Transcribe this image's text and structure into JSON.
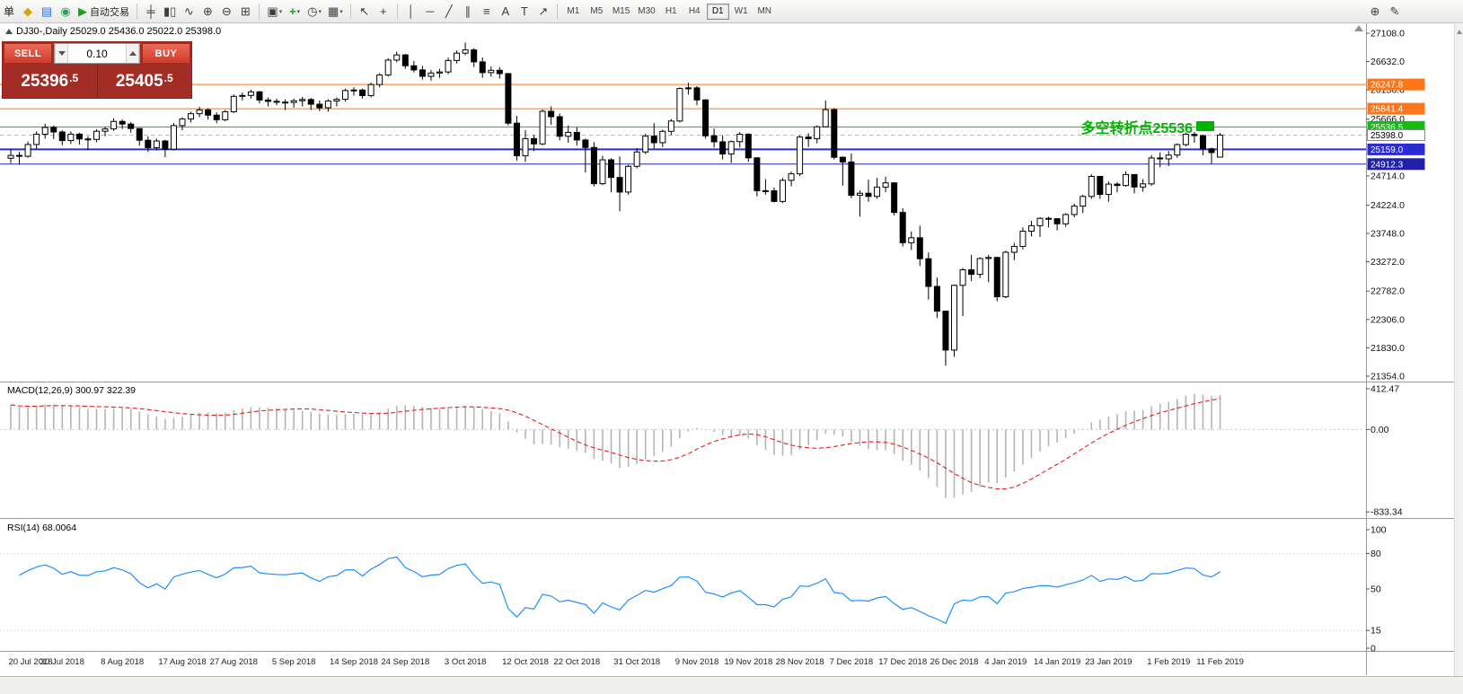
{
  "toolbar": {
    "menu_fragment": "单",
    "dropdown_caret": "▾",
    "groups": [
      {
        "items": [
          {
            "name": "new-order",
            "glyph": "◆",
            "color": "#dca400"
          },
          {
            "name": "market-watch",
            "glyph": "▤",
            "color": "#3a6fd8"
          },
          {
            "name": "navigator",
            "glyph": "◉",
            "color": "#2e9e5b"
          },
          {
            "name": "auto-trading",
            "glyph": "▶",
            "color": "#16a316",
            "label": "自动交易"
          }
        ]
      },
      {
        "items": [
          {
            "name": "bars-chart",
            "glyph": "╪"
          },
          {
            "name": "candlestick-chart",
            "glyph": "▮▯"
          },
          {
            "name": "line-chart",
            "glyph": "∿"
          },
          {
            "name": "zoom-in",
            "glyph": "⊕"
          },
          {
            "name": "zoom-out",
            "glyph": "⊖"
          },
          {
            "name": "tile-windows",
            "glyph": "⊞"
          }
        ]
      },
      {
        "items": [
          {
            "name": "new-chart",
            "glyph": "▣",
            "dropdown": true
          },
          {
            "name": "add-indicator",
            "glyph": "+",
            "color": "#16a316",
            "bold": true,
            "dropdown": true
          },
          {
            "name": "periods",
            "glyph": "◷",
            "dropdown": true
          },
          {
            "name": "templates",
            "glyph": "▦",
            "dropdown": true
          }
        ]
      },
      {
        "items": [
          {
            "name": "cursor",
            "glyph": "↖"
          },
          {
            "name": "crosshair",
            "glyph": "+"
          }
        ]
      },
      {
        "items": [
          {
            "name": "vertical-line",
            "glyph": "│"
          },
          {
            "name": "horizontal-line",
            "glyph": "─"
          },
          {
            "name": "trendline",
            "glyph": "╱"
          },
          {
            "name": "equidistant-channel",
            "glyph": "∥"
          },
          {
            "name": "fibonacci",
            "glyph": "≡"
          },
          {
            "name": "text",
            "glyph": "A"
          },
          {
            "name": "text-label",
            "glyph": "T"
          },
          {
            "name": "arrows",
            "glyph": "↗"
          }
        ]
      }
    ],
    "timeframes": [
      "M1",
      "M5",
      "M15",
      "M30",
      "H1",
      "H4",
      "D1",
      "W1",
      "MN"
    ],
    "active_timeframe": "D1",
    "right_icons": [
      {
        "name": "magnifier",
        "glyph": "⊕"
      },
      {
        "name": "edit-compose",
        "glyph": "✎"
      }
    ]
  },
  "chart": {
    "title": "DJ30-,Daily 25029.0 25436.0 25022.0 25398.0",
    "annotation_text": "多空转折点25536",
    "annotation_color": "#00b400"
  },
  "trade_panel": {
    "sell_label": "SELL",
    "buy_label": "BUY",
    "volume": "0.10",
    "sell_price_main": "25396",
    "sell_price_pip": ".5",
    "buy_price_main": "25405",
    "buy_price_pip": ".5"
  },
  "macd_panel": {
    "label": "MACD(12,26,9) 300.97 322.39",
    "ticks": [
      {
        "v": 412.47,
        "label": "412.47"
      },
      {
        "v": 0,
        "label": "0.00"
      },
      {
        "v": -833.34,
        "label": "-833.34"
      }
    ]
  },
  "rsi_panel": {
    "label": "RSI(14) 68.0064",
    "ticks": [
      {
        "v": 100,
        "label": "100"
      },
      {
        "v": 80,
        "label": "80"
      },
      {
        "v": 50,
        "label": "50"
      },
      {
        "v": 15,
        "label": "15"
      },
      {
        "v": 0,
        "label": "0"
      }
    ],
    "levels": [
      80,
      15
    ]
  },
  "chart_data": {
    "type": "candlestick",
    "symbol": "DJ30-",
    "period": "Daily",
    "ohlc_last": {
      "open": 25029.0,
      "high": 25436.0,
      "low": 25022.0,
      "close": 25398.0
    },
    "y_axis": {
      "top": 27108.0,
      "bottom": 21354.0,
      "ticks": [
        "27108.0",
        "26632.0",
        "26156.0",
        "25666.0",
        "24714.0",
        "24224.0",
        "23748.0",
        "23272.0",
        "22782.0",
        "22306.0",
        "21830.0",
        "21354.0"
      ]
    },
    "levels": [
      {
        "price": 26247.8,
        "label": "26247.8",
        "color": "#ff7519",
        "style": "solid",
        "width": 1
      },
      {
        "price": 25841.4,
        "label": "25841.4",
        "color": "#ff7519",
        "style": "solid",
        "width": 1
      },
      {
        "price": 25536.5,
        "label": "25536.5",
        "color": "#13bd13",
        "style": "solid",
        "width": 1
      },
      {
        "price": 25398.0,
        "label": "25398.0",
        "color": "#b8b8b8",
        "style": "dash",
        "width": 1,
        "axis_style": "plain"
      },
      {
        "price": 25159.0,
        "label": "25159.0",
        "color": "#2b2bd4",
        "style": "solid",
        "width": 2
      },
      {
        "price": 24912.3,
        "label": "24912.3",
        "color": "#2020a8",
        "style": "solid",
        "width": 1
      }
    ],
    "x_labels": [
      {
        "text": "20 Jul 2018",
        "i": 0
      },
      {
        "text": "30 Jul 2018",
        "i": 6
      },
      {
        "text": "8 Aug 2018",
        "i": 13
      },
      {
        "text": "17 Aug 2018",
        "i": 20
      },
      {
        "text": "27 Aug 2018",
        "i": 26
      },
      {
        "text": "5 Sep 2018",
        "i": 33
      },
      {
        "text": "14 Sep 2018",
        "i": 40
      },
      {
        "text": "24 Sep 2018",
        "i": 46
      },
      {
        "text": "3 Oct 2018",
        "i": 53
      },
      {
        "text": "12 Oct 2018",
        "i": 60
      },
      {
        "text": "22 Oct 2018",
        "i": 66
      },
      {
        "text": "31 Oct 2018",
        "i": 73
      },
      {
        "text": "9 Nov 2018",
        "i": 80
      },
      {
        "text": "19 Nov 2018",
        "i": 86
      },
      {
        "text": "28 Nov 2018",
        "i": 92
      },
      {
        "text": "7 Dec 2018",
        "i": 98
      },
      {
        "text": "17 Dec 2018",
        "i": 104
      },
      {
        "text": "26 Dec 2018",
        "i": 110
      },
      {
        "text": "4 Jan 2019",
        "i": 116
      },
      {
        "text": "14 Jan 2019",
        "i": 122
      },
      {
        "text": "23 Jan 2019",
        "i": 128
      },
      {
        "text": "1 Feb 2019",
        "i": 135
      },
      {
        "text": "11 Feb 2019",
        "i": 141
      }
    ],
    "candles": [
      [
        25010,
        25160,
        24930,
        25058
      ],
      [
        25058,
        25120,
        24900,
        25044
      ],
      [
        25044,
        25290,
        25020,
        25241
      ],
      [
        25241,
        25460,
        25170,
        25414
      ],
      [
        25414,
        25590,
        25340,
        25527
      ],
      [
        25527,
        25560,
        25330,
        25451
      ],
      [
        25451,
        25480,
        25230,
        25307
      ],
      [
        25307,
        25460,
        25250,
        25415
      ],
      [
        25415,
        25440,
        25240,
        25334
      ],
      [
        25334,
        25380,
        25150,
        25326
      ],
      [
        25326,
        25500,
        25280,
        25463
      ],
      [
        25463,
        25540,
        25380,
        25502
      ],
      [
        25502,
        25680,
        25470,
        25628
      ],
      [
        25628,
        25660,
        25500,
        25584
      ],
      [
        25584,
        25620,
        25440,
        25509
      ],
      [
        25509,
        25520,
        25220,
        25313
      ],
      [
        25313,
        25380,
        25120,
        25187
      ],
      [
        25187,
        25340,
        25140,
        25300
      ],
      [
        25300,
        25320,
        25029,
        25162
      ],
      [
        25162,
        25600,
        25140,
        25558
      ],
      [
        25558,
        25700,
        25480,
        25669
      ],
      [
        25669,
        25790,
        25610,
        25758
      ],
      [
        25758,
        25870,
        25700,
        25822
      ],
      [
        25822,
        25850,
        25660,
        25734
      ],
      [
        25734,
        25780,
        25600,
        25657
      ],
      [
        25657,
        25820,
        25630,
        25790
      ],
      [
        25790,
        26080,
        25770,
        26049
      ],
      [
        26049,
        26110,
        25980,
        26064
      ],
      [
        26064,
        26160,
        26010,
        26124
      ],
      [
        26124,
        26140,
        25930,
        25987
      ],
      [
        25987,
        26030,
        25880,
        25965
      ],
      [
        25965,
        26010,
        25900,
        25952
      ],
      [
        25952,
        26000,
        25820,
        25947
      ],
      [
        25947,
        26010,
        25860,
        25975
      ],
      [
        25975,
        26040,
        25880,
        25996
      ],
      [
        25996,
        26020,
        25820,
        25917
      ],
      [
        25917,
        25980,
        25800,
        25857
      ],
      [
        25857,
        26000,
        25790,
        25971
      ],
      [
        25971,
        26030,
        25880,
        25999
      ],
      [
        25999,
        26180,
        25960,
        26146
      ],
      [
        26146,
        26200,
        26060,
        26155
      ],
      [
        26155,
        26180,
        26010,
        26062
      ],
      [
        26062,
        26280,
        26030,
        26247
      ],
      [
        26247,
        26440,
        26200,
        26406
      ],
      [
        26406,
        26690,
        26380,
        26657
      ],
      [
        26657,
        26800,
        26620,
        26744
      ],
      [
        26744,
        26760,
        26510,
        26562
      ],
      [
        26562,
        26640,
        26450,
        26492
      ],
      [
        26492,
        26560,
        26330,
        26385
      ],
      [
        26385,
        26490,
        26310,
        26440
      ],
      [
        26440,
        26510,
        26360,
        26458
      ],
      [
        26458,
        26700,
        26420,
        26651
      ],
      [
        26651,
        26820,
        26600,
        26774
      ],
      [
        26774,
        26951,
        26740,
        26828
      ],
      [
        26828,
        26860,
        26540,
        26627
      ],
      [
        26627,
        26700,
        26360,
        26447
      ],
      [
        26447,
        26550,
        26380,
        26486
      ],
      [
        26486,
        26540,
        26350,
        26430
      ],
      [
        26430,
        26440,
        25560,
        25599
      ],
      [
        25599,
        25720,
        24970,
        25053
      ],
      [
        25053,
        25480,
        24950,
        25340
      ],
      [
        25340,
        25400,
        25130,
        25251
      ],
      [
        25251,
        25830,
        25230,
        25798
      ],
      [
        25798,
        25880,
        25570,
        25707
      ],
      [
        25707,
        25760,
        25310,
        25379
      ],
      [
        25379,
        25560,
        25270,
        25444
      ],
      [
        25444,
        25530,
        25220,
        25317
      ],
      [
        25317,
        25340,
        24770,
        25191
      ],
      [
        25191,
        25280,
        24540,
        24583
      ],
      [
        24583,
        25050,
        24560,
        24984
      ],
      [
        24984,
        25010,
        24440,
        24688
      ],
      [
        24688,
        25040,
        24122,
        24443
      ],
      [
        24443,
        24900,
        24400,
        24875
      ],
      [
        24875,
        25180,
        24840,
        25116
      ],
      [
        25116,
        25420,
        25080,
        25381
      ],
      [
        25381,
        25600,
        25170,
        25271
      ],
      [
        25271,
        25490,
        25200,
        25462
      ],
      [
        25462,
        25670,
        25400,
        25635
      ],
      [
        25635,
        26200,
        25610,
        26180
      ],
      [
        26180,
        26277,
        26080,
        26191
      ],
      [
        26191,
        26220,
        25900,
        25989
      ],
      [
        25989,
        26000,
        25340,
        25387
      ],
      [
        25387,
        25510,
        25190,
        25286
      ],
      [
        25286,
        25390,
        24990,
        25081
      ],
      [
        25081,
        25310,
        24930,
        25289
      ],
      [
        25289,
        25450,
        25190,
        25413
      ],
      [
        25413,
        25430,
        24950,
        25017
      ],
      [
        25017,
        25030,
        24370,
        24466
      ],
      [
        24466,
        24660,
        24400,
        24465
      ],
      [
        24465,
        24520,
        24270,
        24286
      ],
      [
        24286,
        24680,
        24260,
        24640
      ],
      [
        24640,
        24790,
        24540,
        24749
      ],
      [
        24749,
        25390,
        24710,
        25366
      ],
      [
        25366,
        25430,
        25200,
        25339
      ],
      [
        25339,
        25560,
        25260,
        25538
      ],
      [
        25538,
        25980,
        25530,
        25826
      ],
      [
        25826,
        25850,
        24990,
        25027
      ],
      [
        25027,
        25040,
        24550,
        24948
      ],
      [
        24948,
        25090,
        24340,
        24389
      ],
      [
        24389,
        24470,
        24030,
        24423
      ],
      [
        24423,
        24650,
        24280,
        24370
      ],
      [
        24370,
        24680,
        24330,
        24527
      ],
      [
        24527,
        24700,
        24440,
        24597
      ],
      [
        24597,
        24610,
        24050,
        24101
      ],
      [
        24101,
        24170,
        23530,
        23593
      ],
      [
        23593,
        23780,
        23470,
        23676
      ],
      [
        23676,
        23880,
        23200,
        23324
      ],
      [
        23324,
        23430,
        22640,
        22860
      ],
      [
        22860,
        23010,
        22330,
        22445
      ],
      [
        22445,
        22450,
        21530,
        21792
      ],
      [
        21792,
        22890,
        21680,
        22878
      ],
      [
        22878,
        23170,
        22360,
        23139
      ],
      [
        23139,
        23390,
        22950,
        23062
      ],
      [
        23062,
        23350,
        23000,
        23328
      ],
      [
        23328,
        23390,
        22930,
        23346
      ],
      [
        23346,
        23360,
        22610,
        22686
      ],
      [
        22686,
        23460,
        22660,
        23433
      ],
      [
        23433,
        23590,
        23300,
        23531
      ],
      [
        23531,
        23850,
        23480,
        23787
      ],
      [
        23787,
        23960,
        23700,
        23879
      ],
      [
        23879,
        24020,
        23690,
        24002
      ],
      [
        24002,
        24030,
        23850,
        23996
      ],
      [
        23996,
        24000,
        23800,
        23910
      ],
      [
        23910,
        24090,
        23860,
        24066
      ],
      [
        24066,
        24250,
        24020,
        24207
      ],
      [
        24207,
        24400,
        24090,
        24370
      ],
      [
        24370,
        24740,
        24330,
        24706
      ],
      [
        24706,
        24710,
        24330,
        24404
      ],
      [
        24404,
        24620,
        24280,
        24576
      ],
      [
        24576,
        24610,
        24440,
        24553
      ],
      [
        24553,
        24790,
        24530,
        24737
      ],
      [
        24737,
        24740,
        24420,
        24528
      ],
      [
        24528,
        24660,
        24450,
        24580
      ],
      [
        24580,
        25060,
        24550,
        25015
      ],
      [
        25015,
        25110,
        24860,
        25000
      ],
      [
        25000,
        25130,
        24880,
        25064
      ],
      [
        25064,
        25260,
        25020,
        25239
      ],
      [
        25239,
        25440,
        25210,
        25411
      ],
      [
        25411,
        25450,
        25270,
        25390
      ],
      [
        25390,
        25400,
        25060,
        25169
      ],
      [
        25169,
        25190,
        24920,
        25106
      ],
      [
        25029,
        25436,
        25022,
        25398
      ]
    ],
    "macd": {
      "fast": 12,
      "slow": 26,
      "signal": 9,
      "current_macd": 300.97,
      "current_signal": 322.39,
      "max": 412.47,
      "min": -833.34
    },
    "rsi": {
      "period": 14,
      "current": 68.0064,
      "range": [
        0,
        100
      ]
    }
  }
}
